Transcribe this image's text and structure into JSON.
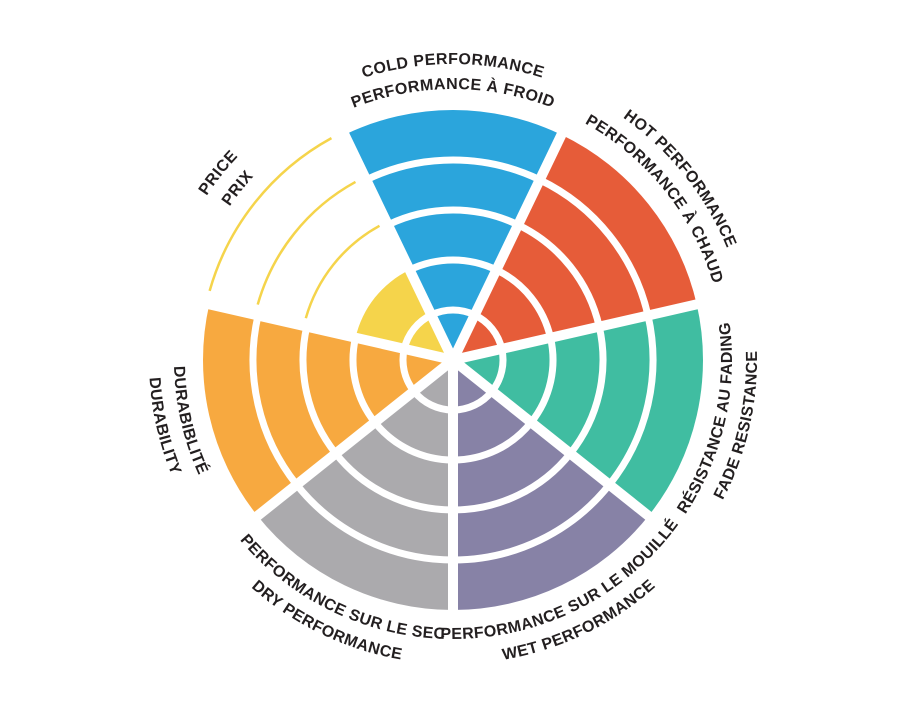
{
  "page": {
    "background_color": "#FFFFFF"
  },
  "chart_data": {
    "type": "bar",
    "variant": "polar-wheel-rating",
    "title": "",
    "rings": 5,
    "max_value": 5,
    "separator_color": "#FFFFFF",
    "text_color": "#231F20",
    "legend_position": "around-wheel",
    "grid": "concentric-rings",
    "categories": [
      {
        "id": "cold-performance",
        "label_line1": "COLD PERFORMANCE",
        "label_line2": "PERFORMANCE À FROID",
        "value": 5,
        "color": "#2BA5DC",
        "flipped": false
      },
      {
        "id": "hot-performance",
        "label_line1": "HOT PERFORMANCE",
        "label_line2": "PERFORMANCE À CHAUD",
        "value": 5,
        "color": "#E65C39",
        "flipped": false
      },
      {
        "id": "fade-resistance",
        "label_line1": "RÉSISTANCE AU FADING",
        "label_line2": "FADE RESISTANCE",
        "value": 5,
        "color": "#40BDA1",
        "flipped": true
      },
      {
        "id": "wet-performance",
        "label_line1": "PERFORMANCE SUR LE MOUILLÉ",
        "label_line2": "WET PERFORMANCE",
        "value": 5,
        "color": "#8782A6",
        "flipped": true
      },
      {
        "id": "dry-performance",
        "label_line1": "PERFORMANCE SUR LE SEC",
        "label_line2": "DRY PERFORMANCE",
        "value": 5,
        "color": "#ABAAAD",
        "flipped": true
      },
      {
        "id": "durability",
        "label_line1": "DURABIBLITÉ",
        "label_line2": "DURABILITY",
        "value": 5,
        "color": "#F7A940",
        "flipped": true
      },
      {
        "id": "price",
        "label_line1": "PRICE",
        "label_line2": "PRIX",
        "value": 2,
        "color": "#F5D44B",
        "flipped": false
      }
    ]
  }
}
